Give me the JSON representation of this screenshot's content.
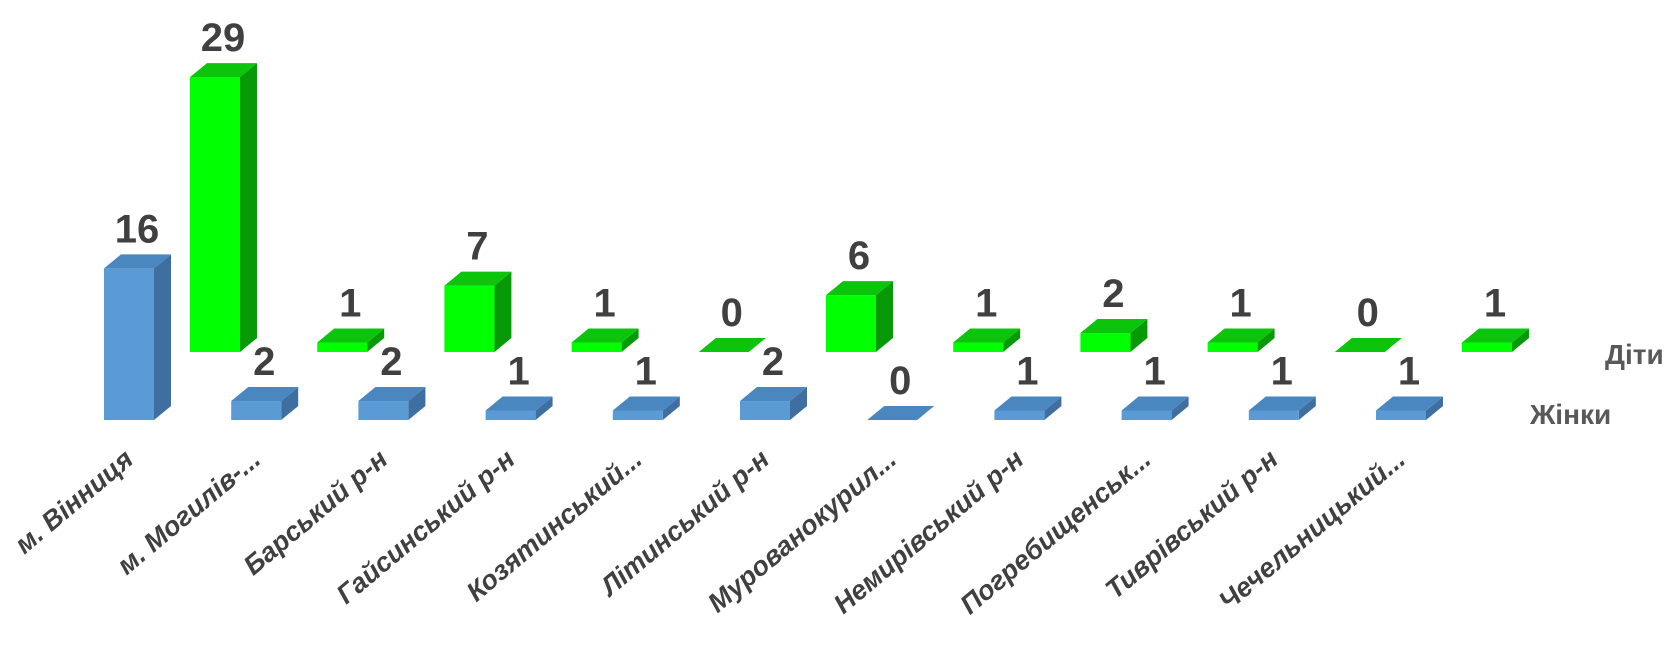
{
  "chart_data": {
    "type": "bar",
    "title": "",
    "xlabel": "",
    "ylabel": "",
    "categories": [
      "м. Вінниця",
      "м. Могилів-...",
      "Барський р-н",
      "Гайсинський р-н",
      "Козятинський...",
      "Літинський р-н",
      "Мурованокурил...",
      "Немирівський р-н",
      "Погребищенськ...",
      "Тиврівський р-н",
      "Чечельницький...",
      ""
    ],
    "series": [
      {
        "name": "Жінки",
        "color": "#5B9BD5",
        "values": [
          16,
          2,
          2,
          1,
          1,
          2,
          0,
          1,
          1,
          1,
          1,
          null
        ]
      },
      {
        "name": "Діти",
        "color": "#00FF00",
        "values": [
          29,
          1,
          7,
          1,
          0,
          6,
          1,
          2,
          1,
          0,
          1,
          null
        ]
      }
    ],
    "chart_style": "3d-column",
    "grid": false,
    "legend": "series labels at right end of each row"
  }
}
